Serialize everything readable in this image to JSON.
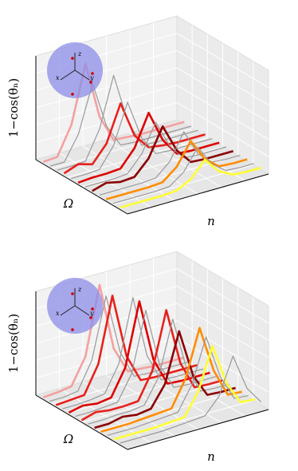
{
  "chart_data": [
    {
      "type": "waterfall3d",
      "y_label": "1−cos(θₙ)",
      "x_label": "n",
      "depth_label": "Ω",
      "inset_labels": [
        "z",
        "x",
        "y"
      ],
      "ylim": [
        0,
        1
      ],
      "series": [
        {
          "color": "#f4a0a0",
          "values": [
            0.02,
            0.03,
            0.3,
            0.85,
            0.3,
            0.04,
            0.03,
            0.02,
            0.02,
            0.02,
            0.02
          ]
        },
        {
          "color": "#999999",
          "values": [
            0.02,
            0.02,
            0.25,
            0.7,
            0.25,
            0.03,
            0.02,
            0.02,
            0.02,
            0.02,
            0.02
          ]
        },
        {
          "color": "#999999",
          "values": [
            0.02,
            0.02,
            0.03,
            0.3,
            0.78,
            0.3,
            0.03,
            0.02,
            0.02,
            0.02,
            0.02
          ]
        },
        {
          "color": "#e8201c",
          "values": [
            0.03,
            0.08,
            0.04,
            0.2,
            0.55,
            0.2,
            0.05,
            0.03,
            0.02,
            0.02,
            0.02
          ]
        },
        {
          "color": "#999999",
          "values": [
            0.02,
            0.02,
            0.03,
            0.22,
            0.6,
            0.22,
            0.03,
            0.02,
            0.02,
            0.02,
            0.02
          ]
        },
        {
          "color": "#dd0000",
          "values": [
            0.02,
            0.03,
            0.03,
            0.04,
            0.2,
            0.5,
            0.2,
            0.03,
            0.02,
            0.02,
            0.02
          ]
        },
        {
          "color": "#999999",
          "values": [
            0.02,
            0.02,
            0.02,
            0.03,
            0.18,
            0.45,
            0.18,
            0.03,
            0.02,
            0.02,
            0.02
          ]
        },
        {
          "color": "#8b0000",
          "values": [
            0.02,
            0.06,
            0.03,
            0.04,
            0.18,
            0.45,
            0.18,
            0.03,
            0.02,
            0.02,
            0.02
          ]
        },
        {
          "color": "#999999",
          "values": [
            0.02,
            0.02,
            0.02,
            0.02,
            0.03,
            0.15,
            0.4,
            0.15,
            0.03,
            0.02,
            0.02
          ]
        },
        {
          "color": "#ff8c00",
          "values": [
            0.02,
            0.02,
            0.02,
            0.02,
            0.03,
            0.14,
            0.35,
            0.14,
            0.03,
            0.02,
            0.02
          ]
        },
        {
          "color": "#999999",
          "values": [
            0.02,
            0.02,
            0.02,
            0.02,
            0.03,
            0.13,
            0.33,
            0.13,
            0.03,
            0.02,
            0.02
          ]
        },
        {
          "color": "#ffff33",
          "values": [
            0.02,
            0.02,
            0.02,
            0.02,
            0.03,
            0.1,
            0.25,
            0.1,
            0.03,
            0.02,
            0.02
          ]
        }
      ]
    },
    {
      "type": "waterfall3d",
      "y_label": "1−cos(θₙ)",
      "x_label": "n",
      "depth_label": "Ω",
      "inset_labels": [
        "z",
        "x",
        "y"
      ],
      "ylim": [
        0,
        1
      ],
      "series": [
        {
          "color": "#f4a0a0",
          "values": [
            0.02,
            0.03,
            0.05,
            0.3,
            0.95,
            0.3,
            0.04,
            0.03,
            0.02,
            0.02,
            0.02
          ]
        },
        {
          "color": "#999999",
          "values": [
            0.02,
            0.02,
            0.04,
            0.3,
            0.88,
            0.3,
            0.03,
            0.02,
            0.02,
            0.02,
            0.02
          ]
        },
        {
          "color": "#e8201c",
          "values": [
            0.02,
            0.03,
            0.04,
            0.3,
            0.92,
            0.3,
            0.03,
            0.02,
            0.02,
            0.02,
            0.02
          ]
        },
        {
          "color": "#999999",
          "values": [
            0.02,
            0.02,
            0.03,
            0.05,
            0.3,
            0.9,
            0.3,
            0.03,
            0.02,
            0.02,
            0.02
          ]
        },
        {
          "color": "#dd0000",
          "values": [
            0.02,
            0.05,
            0.03,
            0.05,
            0.3,
            0.9,
            0.3,
            0.03,
            0.02,
            0.02,
            0.02
          ]
        },
        {
          "color": "#999999",
          "values": [
            0.02,
            0.02,
            0.03,
            0.04,
            0.28,
            0.85,
            0.28,
            0.03,
            0.02,
            0.02,
            0.02
          ]
        },
        {
          "color": "#e8201c",
          "values": [
            0.02,
            0.06,
            0.04,
            0.04,
            0.05,
            0.3,
            0.85,
            0.3,
            0.03,
            0.02,
            0.02
          ]
        },
        {
          "color": "#999999",
          "values": [
            0.02,
            0.02,
            0.03,
            0.03,
            0.05,
            0.28,
            0.8,
            0.28,
            0.03,
            0.02,
            0.02
          ]
        },
        {
          "color": "#8b0000",
          "values": [
            0.02,
            0.02,
            0.05,
            0.03,
            0.05,
            0.25,
            0.72,
            0.25,
            0.03,
            0.02,
            0.02
          ]
        },
        {
          "color": "#ff8c00",
          "values": [
            0.02,
            0.02,
            0.02,
            0.03,
            0.04,
            0.05,
            0.3,
            0.75,
            0.3,
            0.03,
            0.02
          ]
        },
        {
          "color": "#999999",
          "values": [
            0.02,
            0.02,
            0.02,
            0.03,
            0.04,
            0.05,
            0.28,
            0.7,
            0.28,
            0.03,
            0.02
          ]
        },
        {
          "color": "#ffff33",
          "values": [
            0.02,
            0.02,
            0.02,
            0.02,
            0.03,
            0.04,
            0.25,
            0.65,
            0.25,
            0.03,
            0.02
          ]
        },
        {
          "color": "#999999",
          "values": [
            0.02,
            0.02,
            0.02,
            0.02,
            0.03,
            0.04,
            0.05,
            0.2,
            0.55,
            0.2,
            0.03
          ]
        }
      ]
    }
  ]
}
